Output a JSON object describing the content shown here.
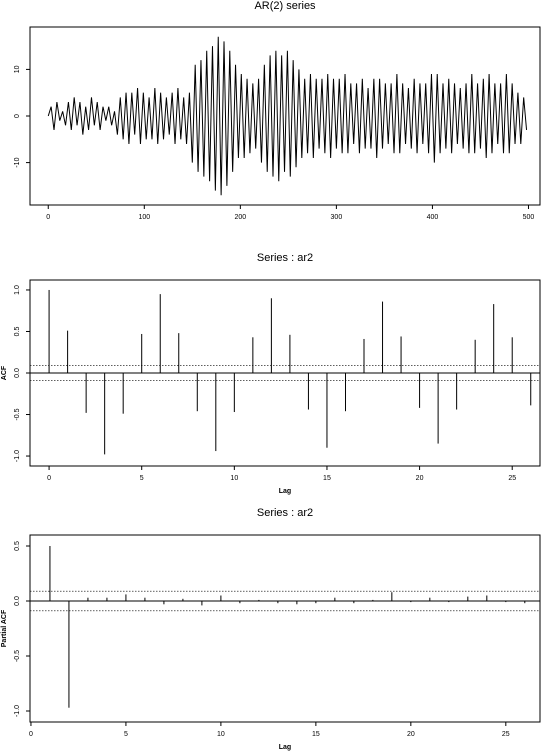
{
  "chart_data": [
    {
      "type": "line",
      "title": "AR(2) series",
      "x": [
        0,
        3,
        6,
        9,
        12,
        15,
        18,
        21,
        24,
        27,
        30,
        33,
        36,
        39,
        42,
        45,
        48,
        51,
        54,
        57,
        60,
        63,
        66,
        69,
        72,
        75,
        78,
        81,
        84,
        87,
        90,
        93,
        96,
        99,
        102,
        105,
        108,
        111,
        114,
        117,
        120,
        123,
        126,
        129,
        132,
        135,
        138,
        141,
        144,
        147,
        150,
        153,
        156,
        159,
        162,
        165,
        168,
        171,
        174,
        177,
        180,
        183,
        186,
        189,
        192,
        195,
        198,
        201,
        204,
        207,
        210,
        213,
        216,
        219,
        222,
        225,
        228,
        231,
        234,
        237,
        240,
        243,
        246,
        249,
        252,
        255,
        258,
        261,
        264,
        267,
        270,
        273,
        276,
        279,
        282,
        285,
        288,
        291,
        294,
        297,
        300,
        303,
        306,
        309,
        312,
        315,
        318,
        321,
        324,
        327,
        330,
        333,
        336,
        339,
        342,
        345,
        348,
        351,
        354,
        357,
        360,
        363,
        366,
        369,
        372,
        375,
        378,
        381,
        384,
        387,
        390,
        393,
        396,
        399,
        402,
        405,
        408,
        411,
        414,
        417,
        420,
        423,
        426,
        429,
        432,
        435,
        438,
        441,
        444,
        447,
        450,
        453,
        456,
        459,
        462,
        465,
        468,
        471,
        474,
        477,
        480,
        483,
        486,
        489,
        492,
        495,
        498
      ],
      "values": [
        0,
        2,
        -3,
        3,
        -1,
        1,
        -2,
        3,
        -3,
        4,
        -2,
        3,
        -4,
        2,
        -3,
        4,
        -2,
        3,
        -3,
        2,
        -1,
        2,
        -2,
        1,
        -4,
        4,
        -5,
        5,
        -6,
        5,
        -4,
        6,
        -6,
        5,
        -5,
        4,
        -5,
        6,
        -6,
        5,
        -5,
        4,
        -4,
        5,
        -6,
        6,
        -5,
        4,
        -6,
        5,
        -10,
        11,
        -12,
        12,
        -13,
        14,
        -14,
        15,
        -16,
        17,
        -17,
        16,
        -15,
        14,
        -12,
        11,
        -9,
        9,
        -9,
        8,
        -8,
        7,
        -7,
        8,
        -10,
        11,
        -12,
        13,
        -13,
        14,
        -14,
        13,
        -12,
        14,
        -13,
        12,
        -11,
        10,
        -9,
        8,
        -8,
        9,
        -9,
        8,
        -7,
        8,
        -8,
        9,
        -9,
        8,
        -7,
        8,
        -8,
        9,
        -8,
        7,
        -6,
        7,
        -8,
        8,
        -7,
        6,
        -7,
        8,
        -9,
        8,
        -7,
        7,
        -6,
        7,
        -8,
        9,
        -8,
        7,
        -6,
        6,
        -7,
        8,
        -8,
        7,
        -6,
        7,
        -8,
        9,
        -10,
        9,
        -8,
        7,
        -7,
        8,
        -8,
        7,
        -6,
        6,
        -7,
        7,
        -8,
        9,
        -8,
        7,
        -7,
        8,
        -9,
        9,
        -8,
        7,
        -6,
        7,
        -8,
        9,
        -8,
        7,
        -6,
        5,
        -6,
        4,
        -3
      ],
      "color": "#000000",
      "xlim": [
        -19,
        512
      ],
      "ylim": [
        -19.1,
        19.1
      ],
      "xticks": [
        0,
        100,
        200,
        300,
        400,
        500
      ],
      "yticks": [
        -10,
        0,
        10
      ]
    },
    {
      "type": "stem",
      "title": "Series : ar2",
      "xlabel": "Lag",
      "ylabel": "ACF",
      "x": [
        0,
        1,
        2,
        3,
        4,
        5,
        6,
        7,
        8,
        9,
        10,
        11,
        12,
        13,
        14,
        15,
        16,
        17,
        18,
        19,
        20,
        21,
        22,
        23,
        24,
        25,
        26
      ],
      "values": [
        1.0,
        0.51,
        -0.48,
        -0.98,
        -0.49,
        0.47,
        0.95,
        0.48,
        -0.46,
        -0.94,
        -0.47,
        0.43,
        0.9,
        0.46,
        -0.44,
        -0.9,
        -0.46,
        0.41,
        0.86,
        0.44,
        -0.42,
        -0.85,
        -0.44,
        0.4,
        0.83,
        0.43,
        -0.39
      ],
      "color": "#000000",
      "ci_lines": [
        0.089,
        -0.089
      ],
      "xlim": [
        -1.03,
        26.5
      ],
      "ylim": [
        -1.12,
        1.12
      ],
      "xticks": [
        0,
        5,
        10,
        15,
        20,
        25
      ],
      "yticks": [
        {
          "value": -1,
          "label": "-1.0"
        },
        -0.5,
        {
          "value": 0,
          "label": "0.0"
        },
        0.5,
        {
          "value": 1,
          "label": "1.0"
        }
      ]
    },
    {
      "type": "stem",
      "title": "Series : ar2",
      "xlabel": "Lag",
      "ylabel": "Partial ACF",
      "x": [
        1,
        2,
        3,
        4,
        5,
        6,
        7,
        8,
        9,
        10,
        11,
        12,
        13,
        14,
        15,
        16,
        17,
        18,
        19,
        20,
        21,
        22,
        23,
        24,
        25,
        26
      ],
      "values": [
        0.5,
        -0.97,
        0.03,
        0.03,
        0.06,
        0.03,
        -0.03,
        0.02,
        -0.04,
        0.05,
        -0.02,
        0.01,
        -0.02,
        -0.03,
        -0.02,
        0.03,
        -0.02,
        0.01,
        0.08,
        -0.01,
        0.03,
        -0.01,
        0.04,
        0.05,
        -0.01,
        -0.02
      ],
      "color": "#000000",
      "ci_lines": [
        0.089,
        -0.089
      ],
      "xlim": [
        -0.05,
        26.8
      ],
      "ylim": [
        -1.1,
        0.6
      ],
      "xticks": [
        0,
        5,
        10,
        15,
        20,
        25
      ],
      "yticks": [
        {
          "value": -1,
          "label": "-1.0"
        },
        -0.5,
        {
          "value": 0,
          "label": "0.0"
        },
        0.5
      ]
    }
  ]
}
